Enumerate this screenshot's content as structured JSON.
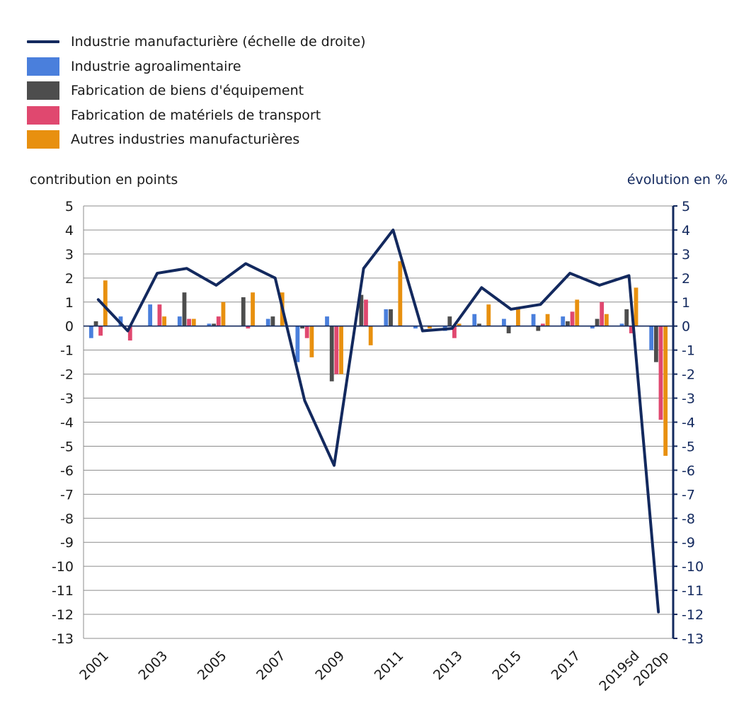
{
  "legend": {
    "line": "Industrie manufacturière (échelle de droite)",
    "s1": "Industrie agroalimentaire",
    "s2": "Fabrication de biens d'équipement",
    "s3": "Fabrication de matériels de transport",
    "s4": "Autres industries manufacturières"
  },
  "axis": {
    "left_title": "contribution en points",
    "right_title": "évolution en %"
  },
  "colors": {
    "line": "#13295e",
    "s1": "#4a7fdc",
    "s2": "#4d4d4d",
    "s3": "#e0486f",
    "s4": "#e8900f",
    "grid": "#8c8c8c",
    "right_axis": "#13295e"
  },
  "chart_data": {
    "type": "bar",
    "categories": [
      "2001",
      "2002",
      "2003",
      "2004",
      "2005",
      "2006",
      "2007",
      "2008",
      "2009",
      "2010",
      "2011",
      "2012",
      "2013",
      "2014",
      "2015",
      "2016",
      "2017",
      "2018",
      "2019sd",
      "2020p"
    ],
    "x_tick_labels": [
      "2001",
      "",
      "2003",
      "",
      "2005",
      "",
      "2007",
      "",
      "2009",
      "",
      "2011",
      "",
      "2013",
      "",
      "2015",
      "",
      "2017",
      "",
      "2019sd",
      "2020p"
    ],
    "ylim": [
      -13,
      5
    ],
    "y_right_lim": [
      -13,
      5
    ],
    "yticks": [
      5,
      4,
      3,
      2,
      1,
      0,
      -1,
      -2,
      -3,
      -4,
      -5,
      -6,
      -7,
      -8,
      -9,
      -10,
      -11,
      -12,
      -13
    ],
    "grid": true,
    "legend_position": "top-left",
    "series": [
      {
        "name": "Industrie agroalimentaire",
        "type": "bar",
        "values": [
          -0.5,
          0.4,
          0.9,
          0.4,
          0.1,
          0.0,
          0.3,
          -1.5,
          0.4,
          0.0,
          0.7,
          -0.1,
          -0.2,
          0.5,
          0.3,
          0.5,
          0.4,
          -0.1,
          0.1,
          -1.0
        ]
      },
      {
        "name": "Fabrication de biens d'équipement",
        "type": "bar",
        "values": [
          0.2,
          0.0,
          0.0,
          1.4,
          0.1,
          1.2,
          0.4,
          -0.1,
          -2.3,
          1.3,
          0.7,
          0.0,
          0.4,
          0.1,
          -0.3,
          -0.2,
          0.2,
          0.3,
          0.7,
          -1.5
        ]
      },
      {
        "name": "Fabrication de matériels de transport",
        "type": "bar",
        "values": [
          -0.4,
          -0.6,
          0.9,
          0.3,
          0.4,
          -0.1,
          0.0,
          -0.5,
          -2.0,
          1.1,
          0.0,
          0.0,
          -0.5,
          0.0,
          0.0,
          0.1,
          0.6,
          1.0,
          -0.3,
          -3.9
        ]
      },
      {
        "name": "Autres industries manufacturières",
        "type": "bar",
        "values": [
          1.9,
          0.0,
          0.4,
          0.3,
          1.0,
          1.4,
          1.4,
          -1.3,
          -2.0,
          -0.8,
          2.7,
          -0.1,
          0.1,
          0.9,
          0.8,
          0.5,
          1.1,
          0.5,
          1.6,
          -5.4
        ]
      },
      {
        "name": "Industrie manufacturière (échelle de droite)",
        "type": "line",
        "axis": "right",
        "values": [
          1.1,
          -0.2,
          2.2,
          2.4,
          1.7,
          2.6,
          2.0,
          -3.1,
          -5.8,
          2.4,
          4.0,
          -0.2,
          -0.1,
          1.6,
          0.7,
          0.9,
          2.2,
          1.7,
          2.1,
          -11.9
        ]
      }
    ]
  }
}
